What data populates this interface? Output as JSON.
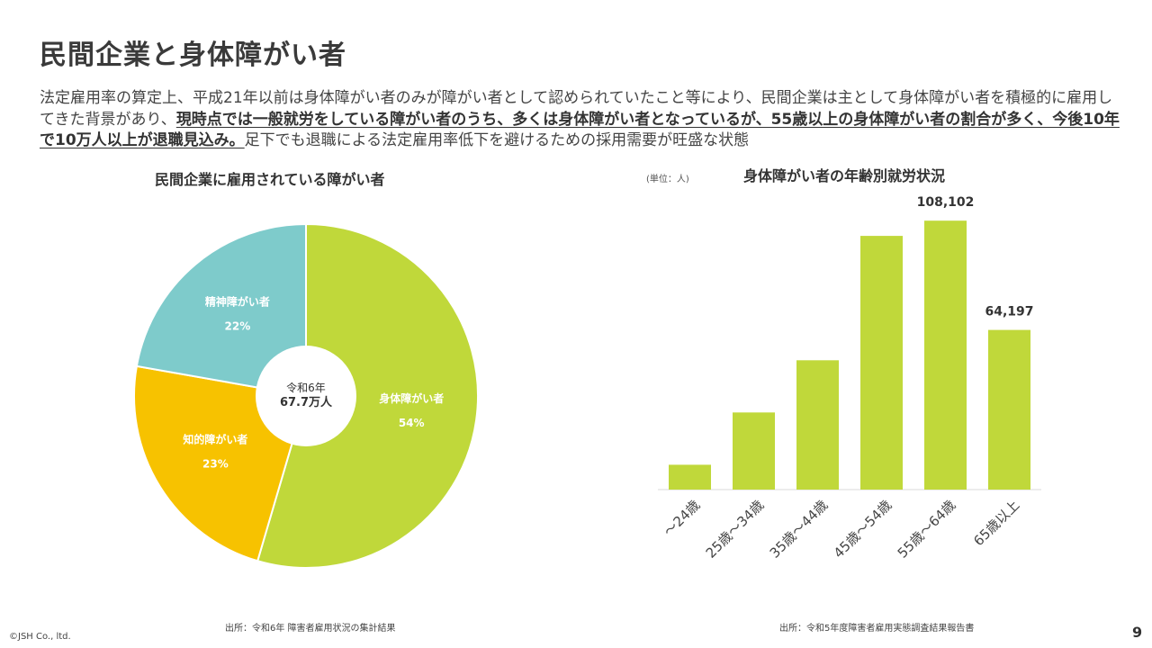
{
  "page": {
    "title": "民間企業と身体障がい者",
    "lead_1": "法定雇用率の算定上、平成21年以前は身体障がい者のみが障がい者として認められていたこと等により、民間企業は主として身体障がい者を積極的に雇用してきた背景があり、",
    "lead_2": "現時点では一般就労をしている障がい者のうち、多くは身体障がい者となっているが、55歳以上の身体障がい者の割合が多く、今後10年で10万人以上が退職見込み。",
    "lead_3": "足下でも退職による法定雇用率低下を避けるための採用需要が旺盛な状態",
    "copyright": "©JSH Co., ltd.",
    "page_number": "9"
  },
  "pie": {
    "title": "民間企業に雇用されている障がい者",
    "center_line1": "令和6年",
    "center_line2": "67.7万人",
    "source": "出所：令和6年 障害者雇用状況の集計結果"
  },
  "bar": {
    "title": "身体障がい者の年齢別就労状況",
    "unit": "(単位：人)",
    "source": "出所：令和5年度障害者雇用実態調査結果報告書"
  },
  "chart_data": [
    {
      "type": "pie",
      "title": "民間企業に雇用されている障がい者",
      "slices": [
        {
          "name": "身体障がい者",
          "value": 54,
          "label": "54%",
          "color": "#c0d83a"
        },
        {
          "name": "知的障がい者",
          "value": 23,
          "label": "23%",
          "color": "#f7c200"
        },
        {
          "name": "精神障がい者",
          "value": 22,
          "label": "22%",
          "color": "#7ecbcb"
        }
      ],
      "center_text": [
        "令和6年",
        "67.7万人"
      ]
    },
    {
      "type": "bar",
      "title": "身体障がい者の年齢別就労状況",
      "unit": "(単位：人)",
      "categories": [
        "～24歳",
        "25歳～34歳",
        "35歳～44歳",
        "45歳～54歳",
        "55歳～64歳",
        "65歳以上"
      ],
      "values": [
        10000,
        31000,
        52000,
        102000,
        108102,
        64197
      ],
      "labels": [
        "",
        "",
        "",
        "",
        "108,102",
        "64,197"
      ],
      "ylim": [
        0,
        110000
      ],
      "color": "#c0d83a"
    }
  ]
}
